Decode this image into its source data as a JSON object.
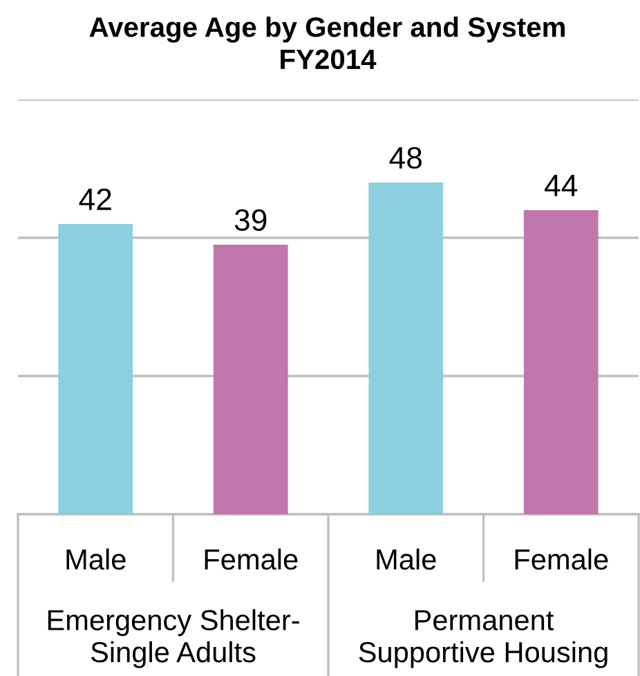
{
  "chart_data": {
    "type": "bar",
    "title": "Average Age by Gender and System\nFY2014",
    "categories": [
      "Male",
      "Female",
      "Male",
      "Female"
    ],
    "values": [
      42,
      39,
      48,
      44
    ],
    "colors": [
      "#8ccfe0",
      "#c077ac",
      "#8ccfe0",
      "#c077ac"
    ],
    "ylim": [
      0,
      60
    ],
    "yticks": [
      {
        "value": 0,
        "label": null
      },
      {
        "value": 20,
        "label": null
      },
      {
        "value": 40,
        "label": null
      },
      {
        "value": 60,
        "label": null
      }
    ],
    "grid": "y",
    "data_labels": true,
    "tick_labels": "x",
    "annotations": [
      "Emergency Shelter-\nSingle Adults",
      "Permanent\nSupportive Housing"
    ]
  }
}
